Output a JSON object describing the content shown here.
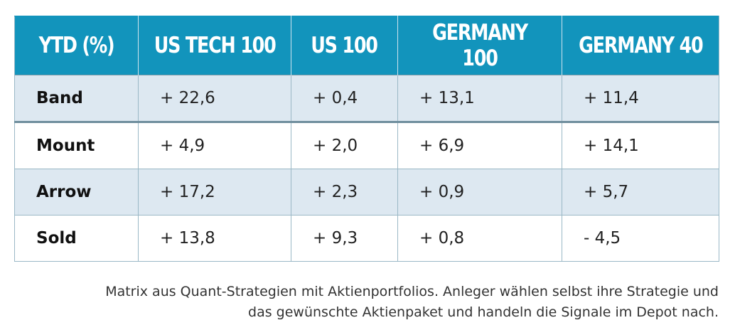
{
  "chart_data": {
    "type": "table",
    "columns": [
      "YTD (%)",
      "US TECH 100",
      "US 100",
      "GERMANY 100",
      "GERMANY 40"
    ],
    "rows": [
      {
        "label": "Band",
        "values": [
          "+ 22,6",
          "+ 0,4",
          "+ 13,1",
          "+ 11,4"
        ]
      },
      {
        "label": "Mount",
        "values": [
          "+ 4,9",
          "+ 2,0",
          "+ 6,9",
          "+ 14,1"
        ]
      },
      {
        "label": "Arrow",
        "values": [
          "+ 17,2",
          "+ 2,3",
          "+ 0,9",
          "+ 5,7"
        ]
      },
      {
        "label": "Sold",
        "values": [
          "+ 13,8",
          "+ 9,3",
          "+ 0,8",
          "- 4,5"
        ]
      }
    ],
    "header_color": "#1294bc",
    "stripe_color": "#dde8f1"
  },
  "caption": {
    "line1": "Matrix aus Quant-Strategien mit Aktienportfolios. Anleger wählen selbst ihre Strategie und",
    "line2": "das gewünschte Aktienpaket und handeln die Signale im Depot nach."
  }
}
